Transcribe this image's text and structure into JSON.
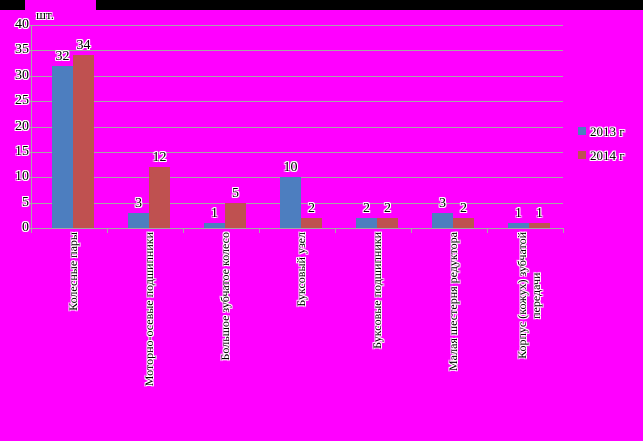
{
  "chart_data": {
    "type": "bar",
    "title": "",
    "y_axis_title": "шт.",
    "categories": [
      "Колесные пары",
      "Моторно-осевые подшипники",
      "Большое зубчатое колесо",
      "Буксовый узел",
      "Буксовые подшипники",
      "Малая шестерня редуктора",
      "Корпус (кожух) зубчатой передачи"
    ],
    "category_label_lines": [
      [
        "Колесные пары"
      ],
      [
        "Моторно-осевые подшипники"
      ],
      [
        "Большое зубчатое колесо"
      ],
      [
        "Буксовый узел"
      ],
      [
        "Буксовые подшипники"
      ],
      [
        "Малая шестерня редуктора"
      ],
      [
        "Корпус (кожух) зубчатой",
        "передачи"
      ]
    ],
    "series": [
      {
        "name": "2013 г",
        "color": "#4d7ebf",
        "values": [
          32,
          3,
          1,
          10,
          2,
          3,
          1
        ]
      },
      {
        "name": "2014 г",
        "color": "#bf5150",
        "values": [
          34,
          12,
          5,
          2,
          2,
          2,
          1
        ]
      }
    ],
    "yticks": [
      0,
      5,
      10,
      15,
      20,
      25,
      30,
      35,
      40
    ],
    "ylim": [
      0,
      40
    ],
    "grid": true,
    "legend_position": "right",
    "colors": {
      "background": "#ff00ff",
      "top_strip": "#000000",
      "gridline": "#a6a6a6",
      "text": "#000000"
    }
  }
}
